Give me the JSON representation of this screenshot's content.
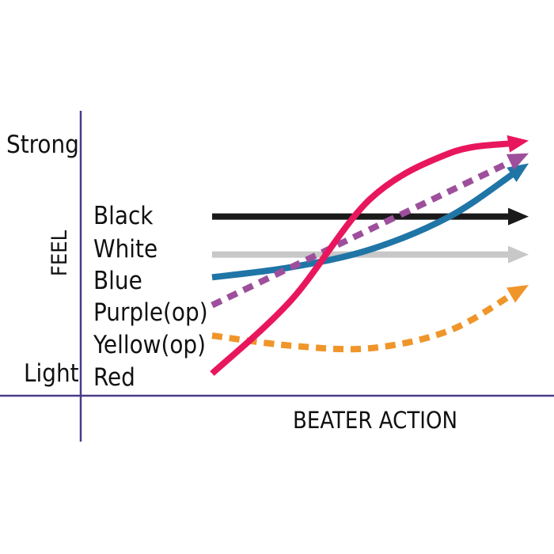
{
  "chart_data": {
    "type": "line",
    "ylabel": "FEEL",
    "xlabel": "BEATER ACTION",
    "y_tick_labels": {
      "top": "Strong",
      "bottom": "Light"
    },
    "legend_labels": [
      "Black",
      "White",
      "Blue",
      "Purple(op)",
      "Yellow(op)",
      "Red"
    ],
    "xlim": [
      0,
      1
    ],
    "ylim": [
      0,
      1
    ],
    "series": [
      {
        "name": "Black",
        "color": "#1a1a1a",
        "style": "solid",
        "points": [
          [
            0,
            0.67
          ],
          [
            1,
            0.67
          ]
        ]
      },
      {
        "name": "White",
        "color": "#c8c8c8",
        "style": "solid",
        "points": [
          [
            0,
            0.52
          ],
          [
            1,
            0.52
          ]
        ]
      },
      {
        "name": "Blue",
        "color": "#1f75a6",
        "style": "solid",
        "points": [
          [
            0,
            0.43
          ],
          [
            0.25,
            0.47
          ],
          [
            0.5,
            0.54
          ],
          [
            0.75,
            0.67
          ],
          [
            1,
            0.88
          ]
        ]
      },
      {
        "name": "Purple(op)",
        "color": "#9e4f9c",
        "style": "dashed",
        "points": [
          [
            0,
            0.32
          ],
          [
            0.25,
            0.47
          ],
          [
            0.5,
            0.62
          ],
          [
            0.75,
            0.77
          ],
          [
            1,
            0.92
          ]
        ]
      },
      {
        "name": "Yellow(op)",
        "color": "#f0952a",
        "style": "dashed",
        "points": [
          [
            0,
            0.2
          ],
          [
            0.25,
            0.16
          ],
          [
            0.5,
            0.15
          ],
          [
            0.75,
            0.22
          ],
          [
            1,
            0.4
          ]
        ]
      },
      {
        "name": "Red",
        "color": "#e8175d",
        "style": "solid",
        "points": [
          [
            0,
            0.05
          ],
          [
            0.25,
            0.34
          ],
          [
            0.5,
            0.74
          ],
          [
            0.75,
            0.92
          ],
          [
            1,
            0.97
          ]
        ]
      }
    ]
  },
  "colors": {
    "axis": "#4a3b87",
    "text": "#111111"
  }
}
